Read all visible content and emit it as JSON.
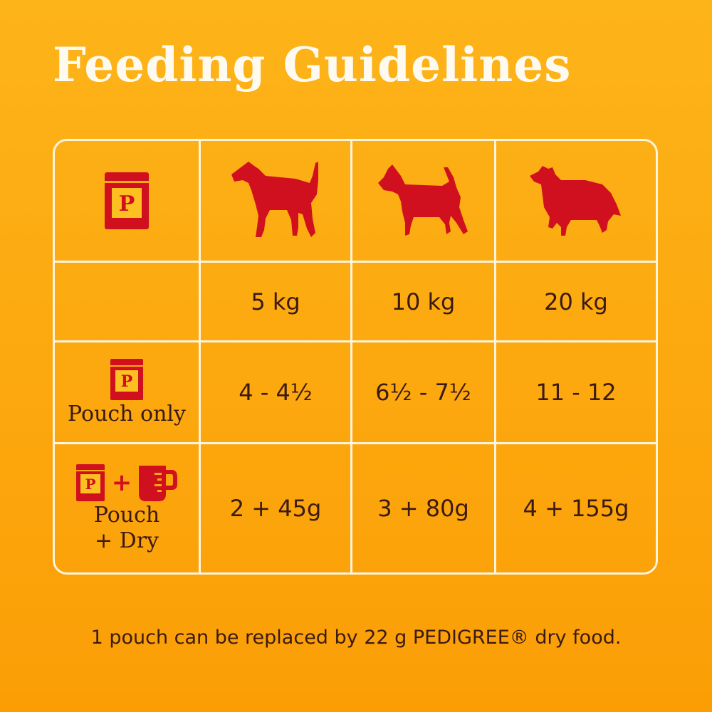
{
  "title": "Feeding Guidelines",
  "brand_letter": "P",
  "weights": [
    "5 kg",
    "10 kg",
    "20 kg"
  ],
  "rows": [
    {
      "label": "Pouch only",
      "values": [
        "4 - 4½",
        "6½ - 7½",
        "11 - 12"
      ]
    },
    {
      "label_line1": "Pouch",
      "label_line2": "+ Dry",
      "plus": "+",
      "values": [
        "2 + 45g",
        "3 + 80g",
        "4 + 155g"
      ]
    }
  ],
  "footer": "1 pouch can be replaced by 22 g PEDIGREE® dry food.",
  "icons": [
    "pouch-icon",
    "small-dog-icon",
    "terrier-dog-icon",
    "collie-dog-icon",
    "measuring-cup-icon"
  ],
  "colors": {
    "background": "#FCAA10",
    "accent_red": "#D0101F",
    "text": "#3A1A12",
    "lines": "#FFF4DC"
  }
}
